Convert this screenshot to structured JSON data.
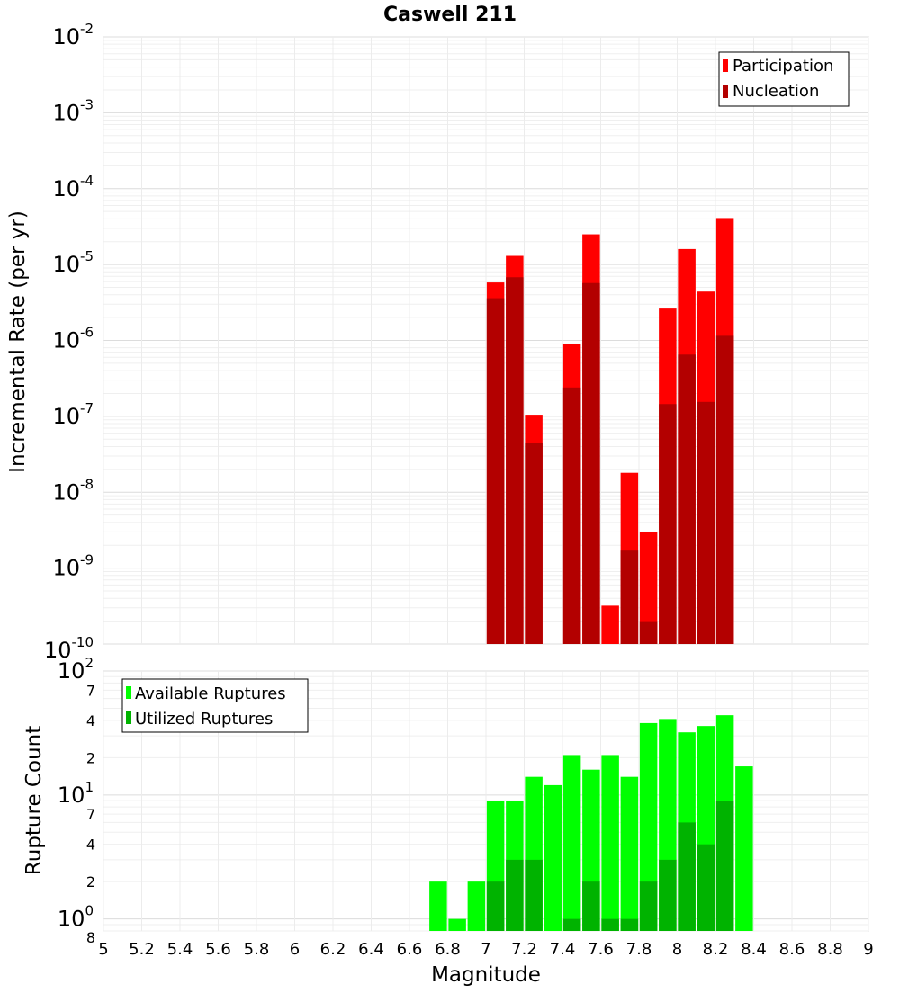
{
  "title": "Caswell 211",
  "x_axis": {
    "label": "Magnitude",
    "ticks": [
      "5",
      "5.2",
      "5.4",
      "5.6",
      "5.8",
      "6",
      "6.2",
      "6.4",
      "6.6",
      "6.8",
      "7",
      "7.2",
      "7.4",
      "7.6",
      "7.8",
      "8",
      "8.2",
      "8.4",
      "8.6",
      "8.8",
      "9"
    ]
  },
  "chart_data": [
    {
      "type": "bar",
      "title": "Caswell 211",
      "ylabel": "Incremental Rate (per yr)",
      "xlabel": "Magnitude",
      "xlim": [
        5,
        9
      ],
      "ylim": [
        1e-10,
        0.01
      ],
      "y_scale": "log",
      "y_ticks": [
        {
          "base": "10",
          "exp": "-2",
          "value": 0.01
        },
        {
          "base": "10",
          "exp": "-3",
          "value": 0.001
        },
        {
          "base": "10",
          "exp": "-4",
          "value": 0.0001
        },
        {
          "base": "10",
          "exp": "-5",
          "value": 1e-05
        },
        {
          "base": "10",
          "exp": "-6",
          "value": 1e-06
        },
        {
          "base": "10",
          "exp": "-7",
          "value": 1e-07
        },
        {
          "base": "10",
          "exp": "-8",
          "value": 1e-08
        },
        {
          "base": "10",
          "exp": "-9",
          "value": 1e-09
        },
        {
          "base": "10",
          "exp": "-10",
          "value": 1e-10
        }
      ],
      "grid": true,
      "legend_position": "top-right",
      "x": [
        7.05,
        7.15,
        7.25,
        7.35,
        7.45,
        7.55,
        7.65,
        7.75,
        7.85,
        7.95,
        8.05,
        8.15,
        8.25
      ],
      "series": [
        {
          "name": "Participation",
          "color": "#ff0000",
          "values": [
            5.8e-06,
            1.3e-05,
            1.05e-07,
            null,
            9e-07,
            2.5e-05,
            3.2e-10,
            1.8e-08,
            3e-09,
            2.7e-06,
            1.6e-05,
            4.4e-06,
            4.1e-05
          ]
        },
        {
          "name": "Nucleation",
          "color": "#b30000",
          "values": [
            3.6e-06,
            6.8e-06,
            4.4e-08,
            null,
            2.4e-07,
            5.7e-06,
            null,
            1.7e-09,
            2e-10,
            1.45e-07,
            6.5e-07,
            1.55e-07,
            1.15e-06
          ]
        }
      ]
    },
    {
      "type": "bar",
      "ylabel": "Rupture Count",
      "xlabel": "Magnitude",
      "xlim": [
        5,
        9
      ],
      "ylim": [
        0.8,
        100
      ],
      "y_scale": "log",
      "y_ticks": [
        {
          "base": "10",
          "exp": "2",
          "value": 100
        },
        {
          "base": "7",
          "exp": "",
          "value": 70
        },
        {
          "base": "4",
          "exp": "",
          "value": 40
        },
        {
          "base": "2",
          "exp": "",
          "value": 20
        },
        {
          "base": "10",
          "exp": "1",
          "value": 10
        },
        {
          "base": "7",
          "exp": "",
          "value": 7
        },
        {
          "base": "4",
          "exp": "",
          "value": 4
        },
        {
          "base": "2",
          "exp": "",
          "value": 2
        },
        {
          "base": "10",
          "exp": "0",
          "value": 1
        },
        {
          "base": "8",
          "exp": "",
          "value": 0.8
        }
      ],
      "grid": true,
      "legend_position": "top-left",
      "x": [
        6.75,
        6.85,
        6.95,
        7.05,
        7.15,
        7.25,
        7.35,
        7.45,
        7.55,
        7.65,
        7.75,
        7.85,
        7.95,
        8.05,
        8.15,
        8.25,
        8.35
      ],
      "series": [
        {
          "name": "Available Ruptures",
          "color": "#00ff00",
          "values": [
            2,
            1,
            2,
            9,
            9,
            14,
            12,
            21,
            16,
            21,
            14,
            38,
            41,
            32,
            36,
            44,
            17
          ]
        },
        {
          "name": "Utilized Ruptures",
          "color": "#00b300",
          "values": [
            null,
            null,
            null,
            2,
            3,
            3,
            null,
            1,
            2,
            1,
            1,
            2,
            3,
            6,
            4,
            9,
            null
          ]
        }
      ]
    }
  ]
}
